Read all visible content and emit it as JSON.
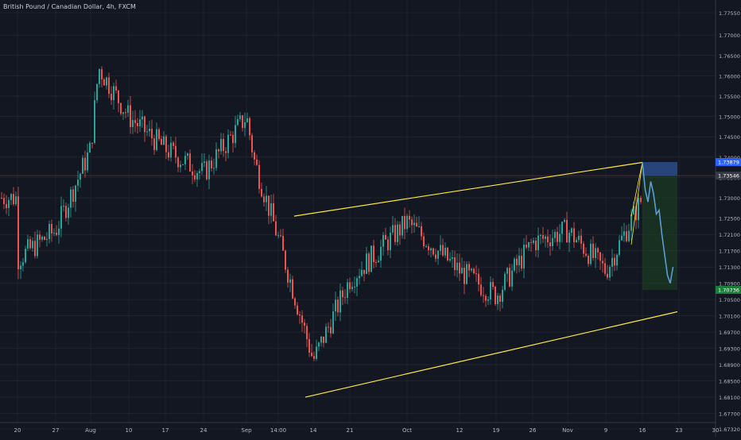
{
  "header": {
    "symbol": "British Pound / Canadian Dollar, 4h, FXCM"
  },
  "colors": {
    "background": "#131722",
    "grid": "#2a2e39",
    "up_candle": "#26a69a",
    "down_candle": "#ef5350",
    "trendline": "#ffeb3b",
    "projection": "#5b9bd5",
    "crosshair": "#ff4444"
  },
  "chart_data": {
    "type": "candlestick",
    "title": "British Pound / Canadian Dollar, 4h, FXCM",
    "ylim": [
      1.6732,
      1.7835
    ],
    "y_ticks": [
      "1.77550",
      "1.77000",
      "1.76500",
      "1.76000",
      "1.75500",
      "1.75000",
      "1.74500",
      "1.74000",
      "1.73500",
      "1.73000",
      "1.72500",
      "1.72100",
      "1.71700",
      "1.71300",
      "1.70900",
      "1.70500",
      "1.70100",
      "1.69700",
      "1.69300",
      "1.68900",
      "1.68500",
      "1.68100",
      "1.67700",
      "1.67320"
    ],
    "x_ticks": [
      "20",
      "27",
      "Aug",
      "10",
      "17",
      "24",
      "Sep",
      "14:00",
      "14",
      "21",
      "Oct",
      "12",
      "19",
      "26",
      "Nov",
      "9",
      "16",
      "23",
      "30"
    ],
    "price_labels": [
      {
        "text": "1.73879",
        "value": 1.73879,
        "color": "#2962ff"
      },
      {
        "text": "1.73546",
        "value": 1.73546,
        "color": "#363a45"
      },
      {
        "text": "1.70736",
        "value": 1.70736,
        "color": "#1b7f3a"
      }
    ],
    "price_path_x": [
      "20",
      "27",
      "Aug",
      "Aug",
      "10",
      "17",
      "24",
      "Sep",
      "Sep",
      "14:00",
      "14",
      "21",
      "Oct",
      "12",
      "19",
      "26",
      "Nov",
      "9",
      "16"
    ],
    "price_path": [
      1.715,
      1.722,
      1.742,
      1.762,
      1.75,
      1.742,
      1.736,
      1.75,
      1.739,
      1.72,
      1.69,
      1.71,
      1.724,
      1.712,
      1.706,
      1.719,
      1.722,
      1.712,
      1.73
    ],
    "channel_upper": {
      "from": [
        "14:00",
        1.7255
      ],
      "to": [
        "16",
        1.7387
      ]
    },
    "channel_lower": {
      "from": [
        "14",
        1.681
      ],
      "to": [
        "23",
        1.702
      ]
    },
    "projection_path": [
      1.7387,
      1.732,
      1.729,
      1.734,
      1.731,
      1.726,
      1.727,
      1.721,
      1.716,
      1.711,
      1.709,
      1.713
    ],
    "position_box": {
      "entry": 1.73546,
      "target": 1.70736,
      "stop": 1.73879
    }
  }
}
